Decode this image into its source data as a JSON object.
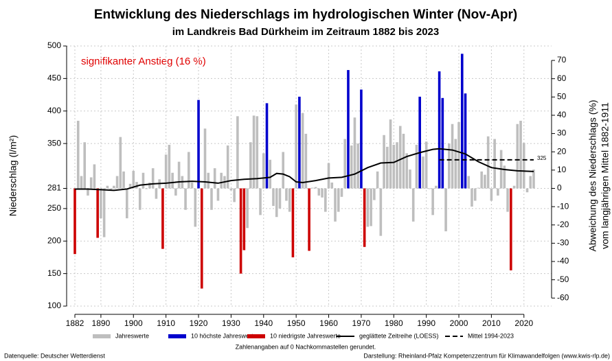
{
  "chart_data": {
    "type": "bar",
    "title": "Entwicklung des Niederschlags im hydrologischen Winter (Nov-Apr)",
    "subtitle": "im Landkreis Bad Dürkheim im Zeitraum 1882 bis 2023",
    "annotation": "signifikanter Anstieg (16 %)",
    "y_label": "Niederschlag (l/m²)",
    "y2_label": [
      "Abweichung des Niederschlags (%)",
      "vom langjährigen Mittel 1882-1911"
    ],
    "note": "Zahlenangaben auf 0 Nachkommastellen gerundet.",
    "source": "Datenquelle: Deutscher Wetterdienst",
    "credit": "Darstellung: Rheinland-Pfalz Kompetenzzentrum für Klimawandelfolgen (www.kwis-rlp.de)",
    "baseline": 281,
    "grid": true,
    "xlim": [
      1882,
      2023
    ],
    "xticks": [
      1882,
      1890,
      1900,
      1910,
      1920,
      1930,
      1940,
      1950,
      1960,
      1970,
      1980,
      1990,
      2000,
      2010,
      2020
    ],
    "ylim": [
      100,
      500
    ],
    "yticks": [
      100,
      150,
      200,
      250,
      281,
      350,
      400,
      450,
      500
    ],
    "y2lim": [
      -64.4,
      77.9
    ],
    "y2ticks": [
      -60,
      -50,
      -40,
      -30,
      -20,
      -10,
      0,
      10,
      20,
      30,
      40,
      50,
      60,
      70
    ],
    "x": [
      1882,
      1883,
      1884,
      1885,
      1886,
      1887,
      1888,
      1889,
      1890,
      1891,
      1892,
      1893,
      1894,
      1895,
      1896,
      1897,
      1898,
      1899,
      1900,
      1901,
      1902,
      1903,
      1904,
      1905,
      1906,
      1907,
      1908,
      1909,
      1910,
      1911,
      1912,
      1913,
      1914,
      1915,
      1916,
      1917,
      1918,
      1919,
      1920,
      1921,
      1922,
      1923,
      1924,
      1925,
      1926,
      1927,
      1928,
      1929,
      1930,
      1931,
      1932,
      1933,
      1934,
      1935,
      1936,
      1937,
      1938,
      1939,
      1940,
      1941,
      1942,
      1943,
      1944,
      1945,
      1946,
      1947,
      1948,
      1949,
      1950,
      1951,
      1952,
      1953,
      1954,
      1955,
      1956,
      1957,
      1958,
      1959,
      1960,
      1961,
      1962,
      1963,
      1964,
      1965,
      1966,
      1967,
      1968,
      1969,
      1970,
      1971,
      1972,
      1973,
      1974,
      1975,
      1976,
      1977,
      1978,
      1979,
      1980,
      1981,
      1982,
      1983,
      1984,
      1985,
      1986,
      1987,
      1988,
      1989,
      1990,
      1991,
      1992,
      1993,
      1994,
      1995,
      1996,
      1997,
      1998,
      1999,
      2000,
      2001,
      2002,
      2003,
      2004,
      2005,
      2006,
      2007,
      2008,
      2009,
      2010,
      2011,
      2012,
      2013,
      2014,
      2015,
      2016,
      2017,
      2018,
      2019,
      2020,
      2021,
      2022,
      2023
    ],
    "series": [
      {
        "name": "Jahreswerte",
        "color": "#bebebe",
        "kind": "bar",
        "values": [
          null,
          385,
          300,
          352,
          270,
          298,
          318,
          null,
          235,
          206,
          285,
          278,
          285,
          300,
          360,
          307,
          235,
          288,
          308,
          291,
          248,
          305,
          280,
          290,
          312,
          265,
          295,
          null,
          333,
          348,
          305,
          270,
          322,
          300,
          248,
          337,
          290,
          222,
          null,
          null,
          373,
          305,
          248,
          312,
          262,
          305,
          300,
          347,
          278,
          260,
          392,
          null,
          null,
          220,
          352,
          393,
          392,
          240,
          335,
          null,
          325,
          254,
          237,
          250,
          337,
          262,
          245,
          null,
          410,
          null,
          397,
          365,
          null,
          282,
          283,
          270,
          267,
          245,
          320,
          290,
          230,
          245,
          268,
          357,
          null,
          347,
          390,
          350,
          null,
          null,
          222,
          223,
          263,
          307,
          208,
          363,
          345,
          387,
          348,
          352,
          377,
          365,
          335,
          310,
          230,
          348,
          null,
          330,
          353,
          280,
          240,
          285,
          null,
          null,
          215,
          350,
          380,
          357,
          383,
          null,
          null,
          300,
          253,
          262,
          282,
          307,
          302,
          361,
          262,
          357,
          270,
          340,
          316,
          245,
          null,
          285,
          380,
          385,
          351,
          275,
          300,
          310
        ]
      },
      {
        "name": "10 höchste Jahreswerte",
        "color": "#0000cd",
        "kind": "bar",
        "x": [
          1920,
          1941,
          1951,
          1966,
          1970,
          1988,
          1994,
          1995,
          2001,
          2002
        ],
        "values": [
          417,
          412,
          422,
          463,
          433,
          422,
          461,
          420,
          488,
          427
        ]
      },
      {
        "name": "10 niedrigste Jahreswerte",
        "color": "#cd0000",
        "kind": "bar",
        "x": [
          1882,
          1889,
          1909,
          1921,
          1933,
          1934,
          1949,
          1954,
          1971,
          2016
        ],
        "values": [
          180,
          205,
          188,
          127,
          150,
          186,
          175,
          185,
          191,
          155
        ]
      },
      {
        "name": "geglättete Zeitreihe (LOESS)",
        "color": "#000000",
        "kind": "line",
        "x": [
          1882,
          1886,
          1890,
          1894,
          1898,
          1902,
          1906,
          1910,
          1914,
          1918,
          1922,
          1926,
          1930,
          1934,
          1938,
          1942,
          1944,
          1946,
          1948,
          1950,
          1952,
          1956,
          1960,
          1964,
          1968,
          1972,
          1976,
          1980,
          1984,
          1988,
          1992,
          1994,
          1998,
          2002,
          2006,
          2010,
          2014,
          2018,
          2023
        ],
        "values": [
          280,
          280,
          279,
          278,
          280,
          286,
          288,
          289,
          291,
          292,
          291,
          289,
          293,
          295,
          296,
          298,
          304,
          303,
          299,
          291,
          290,
          293,
          297,
          298,
          303,
          313,
          320,
          321,
          330,
          336,
          341,
          342,
          340,
          334,
          322,
          313,
          310,
          308,
          307
        ]
      },
      {
        "name": "Mittel 1994-2023",
        "color": "#000000",
        "kind": "dashed",
        "x": [
          1994,
          2023
        ],
        "values": [
          325,
          325
        ]
      }
    ]
  }
}
